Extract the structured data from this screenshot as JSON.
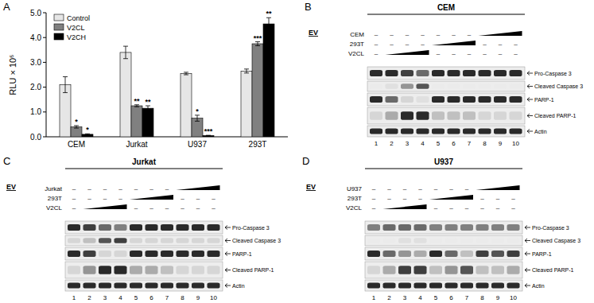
{
  "panel_labels": [
    "A",
    "B",
    "C",
    "D"
  ],
  "chart_data": {
    "type": "bar",
    "y_label": "RLU × 10⁶",
    "categories": [
      "CEM",
      "Jurkat",
      "U937",
      "293T"
    ],
    "series": [
      {
        "name": "Control",
        "color": "#e6e6e6",
        "values": [
          2.1,
          3.4,
          2.55,
          2.65
        ],
        "errors": [
          0.32,
          0.25,
          0.05,
          0.08
        ]
      },
      {
        "name": "V2CL",
        "color": "#808080",
        "values": [
          0.4,
          1.25,
          0.75,
          3.75
        ],
        "errors": [
          0.05,
          0.04,
          0.12,
          0.08
        ],
        "significance": [
          "*",
          "**",
          "*",
          "***"
        ]
      },
      {
        "name": "V2CH",
        "color": "#000000",
        "values": [
          0.1,
          1.15,
          0.05,
          4.55
        ],
        "errors": [
          0.02,
          0.1,
          0.01,
          0.25
        ],
        "significance": [
          "*",
          "**",
          "***",
          "**"
        ]
      }
    ],
    "ylim": [
      0,
      5
    ],
    "yticks": [
      {
        "value": 0,
        "label": "0.0"
      },
      {
        "value": 1,
        "label": "1.0"
      },
      {
        "value": 2,
        "label": "2.0"
      },
      {
        "value": 3,
        "label": "3.0"
      },
      {
        "value": 4,
        "label": "4.0"
      },
      {
        "value": 5,
        "label": "5.0"
      }
    ],
    "legend": "top-left",
    "grid": false
  },
  "blots": [
    {
      "title": "CEM",
      "ev_label": "EV",
      "treatments": [
        {
          "label": "CEM",
          "cells": [
            "–",
            "–",
            "–",
            "–",
            "–",
            "–",
            "–",
            null,
            null,
            null
          ]
        },
        {
          "label": "293T",
          "cells": [
            "–",
            "–",
            "–",
            "–",
            null,
            null,
            null,
            "–",
            "–",
            "–"
          ]
        },
        {
          "label": "V2CL",
          "cells": [
            "–",
            null,
            null,
            null,
            "–",
            "–",
            "–",
            "–",
            "–",
            "–"
          ]
        }
      ],
      "bands": [
        {
          "label": "Pro-Caspase 3",
          "intensity": [
            0.9,
            0.9,
            0.8,
            0.6,
            0.9,
            0.9,
            0.9,
            0.9,
            0.9,
            0.9
          ]
        },
        {
          "label": "Cleaved Caspase 3",
          "intensity": [
            0.0,
            0.05,
            0.4,
            0.7,
            0.0,
            0.0,
            0.0,
            0.0,
            0.0,
            0.0
          ]
        },
        {
          "label": "PARP-1",
          "intensity": [
            0.9,
            0.6,
            0.1,
            0.05,
            0.9,
            0.9,
            0.9,
            0.9,
            0.9,
            0.9
          ]
        },
        {
          "label": "Cleaved PARP-1",
          "intensity": [
            0.1,
            0.3,
            0.9,
            0.9,
            0.2,
            0.2,
            0.2,
            0.1,
            0.1,
            0.1
          ]
        },
        {
          "label": "Actin",
          "intensity": [
            0.9,
            0.9,
            0.9,
            0.9,
            0.9,
            0.9,
            0.9,
            0.9,
            0.9,
            0.9
          ]
        }
      ],
      "lanes": [
        1,
        2,
        3,
        4,
        5,
        6,
        7,
        8,
        9,
        10
      ]
    },
    {
      "title": "Jurkat",
      "ev_label": "EV",
      "treatments": [
        {
          "label": "Jurkat",
          "cells": [
            "–",
            "–",
            "–",
            "–",
            "–",
            "–",
            "–",
            null,
            null,
            null
          ]
        },
        {
          "label": "293T",
          "cells": [
            "–",
            "–",
            "–",
            "–",
            null,
            null,
            null,
            "–",
            "–",
            "–"
          ]
        },
        {
          "label": "V2CL",
          "cells": [
            "–",
            null,
            null,
            null,
            "–",
            "–",
            "–",
            "–",
            "–",
            "–"
          ]
        }
      ],
      "bands": [
        {
          "label": "Pro-Caspase 3",
          "intensity": [
            0.9,
            0.8,
            0.6,
            0.5,
            0.9,
            0.9,
            0.9,
            0.9,
            0.9,
            0.9
          ]
        },
        {
          "label": "Cleaved Caspase 3",
          "intensity": [
            0.1,
            0.2,
            0.7,
            0.8,
            0.1,
            0.1,
            0.1,
            0.1,
            0.1,
            0.1
          ]
        },
        {
          "label": "PARP-1",
          "intensity": [
            0.9,
            0.8,
            0.1,
            0.1,
            0.9,
            0.9,
            0.9,
            0.9,
            0.9,
            0.9
          ]
        },
        {
          "label": "Cleaved PARP-1",
          "intensity": [
            0.1,
            0.4,
            0.9,
            0.9,
            0.3,
            0.3,
            0.2,
            0.1,
            0.1,
            0.1
          ]
        },
        {
          "label": "Actin",
          "intensity": [
            0.9,
            0.9,
            0.9,
            0.9,
            0.9,
            0.9,
            0.9,
            0.9,
            0.9,
            0.9
          ]
        }
      ],
      "lanes": [
        1,
        2,
        3,
        4,
        5,
        6,
        7,
        8,
        9,
        10
      ]
    },
    {
      "title": "U937",
      "ev_label": "EV",
      "treatments": [
        {
          "label": "U937",
          "cells": [
            "–",
            "–",
            "–",
            "–",
            "–",
            "–",
            "–",
            null,
            null,
            null
          ]
        },
        {
          "label": "293T",
          "cells": [
            "–",
            "–",
            "–",
            "–",
            null,
            null,
            null,
            "–",
            "–",
            "–"
          ]
        },
        {
          "label": "V2CL",
          "cells": [
            "–",
            null,
            null,
            null,
            "–",
            "–",
            "–",
            "–",
            "–",
            "–"
          ]
        }
      ],
      "bands": [
        {
          "label": "Pro-Caspase 3",
          "intensity": [
            0.5,
            0.6,
            0.6,
            0.6,
            0.5,
            0.5,
            0.5,
            0.5,
            0.5,
            0.5
          ]
        },
        {
          "label": "Cleaved Caspase 3",
          "intensity": [
            0.0,
            0.0,
            0.05,
            0.05,
            0.0,
            0.0,
            0.0,
            0.0,
            0.0,
            0.0
          ]
        },
        {
          "label": "PARP-1",
          "intensity": [
            0.9,
            0.6,
            0.4,
            0.3,
            0.9,
            0.6,
            0.2,
            0.8,
            0.7,
            0.8
          ]
        },
        {
          "label": "Cleaved PARP-1",
          "intensity": [
            0.1,
            0.3,
            0.8,
            0.8,
            0.2,
            0.4,
            0.7,
            0.2,
            0.2,
            0.3
          ]
        },
        {
          "label": "Actin",
          "intensity": [
            0.9,
            0.9,
            0.9,
            0.9,
            0.9,
            0.9,
            0.9,
            0.9,
            0.9,
            0.9
          ]
        }
      ],
      "lanes": [
        1,
        2,
        3,
        4,
        5,
        6,
        7,
        8,
        9,
        10
      ]
    }
  ]
}
